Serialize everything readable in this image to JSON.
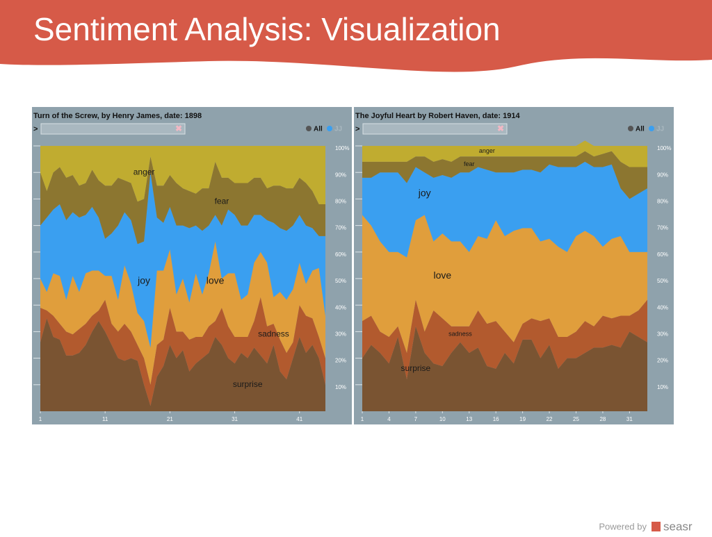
{
  "slide_title": "Sentiment Analysis: Visualization",
  "footer": {
    "text": "Powered by",
    "brand": "seasr"
  },
  "chart_data": [
    {
      "type": "area",
      "stacked": true,
      "title": "Turn of the Screw, by Henry James, date: 1898",
      "prompt": ">",
      "legend_items": [
        {
          "label": "All",
          "color": "#555555"
        },
        {
          "label": "JJ",
          "color": "#3a9ff0"
        }
      ],
      "x": [
        1,
        2,
        3,
        4,
        5,
        6,
        7,
        8,
        9,
        10,
        11,
        12,
        13,
        14,
        15,
        16,
        17,
        18,
        19,
        20,
        21,
        22,
        23,
        24,
        25,
        26,
        27,
        28,
        29,
        30,
        31,
        32,
        33,
        34,
        35,
        36,
        37,
        38,
        39,
        40,
        41,
        42,
        43,
        44,
        45
      ],
      "xlim": [
        1,
        45
      ],
      "xticks": [
        1,
        11,
        21,
        31,
        41
      ],
      "ylim": [
        0,
        100
      ],
      "yticks": [
        {
          "value": 10,
          "label": "10%"
        },
        {
          "value": 20,
          "label": "20%"
        },
        {
          "value": 30,
          "label": "30%"
        },
        {
          "value": 40,
          "label": "40%"
        },
        {
          "value": 50,
          "label": "50%"
        },
        {
          "value": 60,
          "label": "60%"
        },
        {
          "value": 70,
          "label": "70%"
        },
        {
          "value": 80,
          "label": "80%"
        },
        {
          "value": 90,
          "label": "90%"
        },
        {
          "value": 100,
          "label": "100%"
        }
      ],
      "series": [
        {
          "name": "surprise",
          "color": "#7a5432",
          "values": [
            26,
            35,
            28,
            27,
            21,
            21,
            22,
            25,
            30,
            34,
            30,
            25,
            20,
            19,
            20,
            19,
            10,
            2,
            13,
            17,
            25,
            20,
            23,
            15,
            18,
            20,
            22,
            28,
            25,
            20,
            18,
            22,
            20,
            24,
            21,
            18,
            25,
            15,
            12,
            20,
            28,
            22,
            25,
            20,
            10
          ]
        },
        {
          "name": "sadness",
          "color": "#b25a2e",
          "values": [
            13,
            3,
            8,
            6,
            9,
            8,
            9,
            8,
            6,
            4,
            12,
            8,
            10,
            14,
            10,
            6,
            10,
            8,
            12,
            10,
            14,
            10,
            7,
            12,
            10,
            8,
            10,
            6,
            14,
            12,
            10,
            6,
            8,
            10,
            22,
            14,
            8,
            12,
            10,
            6,
            12,
            14,
            10,
            8,
            10
          ]
        },
        {
          "name": "love",
          "color": "#e09e3c",
          "values": [
            11,
            7,
            16,
            18,
            12,
            22,
            14,
            19,
            17,
            15,
            9,
            18,
            12,
            22,
            18,
            12,
            14,
            14,
            28,
            26,
            22,
            14,
            20,
            14,
            24,
            16,
            20,
            30,
            11,
            20,
            24,
            14,
            16,
            22,
            17,
            24,
            10,
            18,
            20,
            20,
            16,
            12,
            18,
            26,
            16
          ]
        },
        {
          "name": "joy",
          "color": "#3a9ff0",
          "values": [
            20,
            28,
            24,
            27,
            30,
            24,
            28,
            22,
            24,
            20,
            14,
            16,
            28,
            20,
            24,
            26,
            30,
            66,
            20,
            18,
            16,
            26,
            20,
            28,
            18,
            24,
            18,
            10,
            20,
            24,
            22,
            28,
            26,
            18,
            14,
            16,
            28,
            24,
            26,
            24,
            18,
            22,
            16,
            12,
            30
          ]
        },
        {
          "name": "fear",
          "color": "#8c7630",
          "values": [
            20,
            10,
            14,
            14,
            16,
            14,
            12,
            12,
            14,
            14,
            20,
            18,
            18,
            12,
            14,
            16,
            16,
            6,
            12,
            14,
            12,
            16,
            14,
            14,
            12,
            16,
            14,
            20,
            18,
            12,
            12,
            16,
            16,
            14,
            14,
            12,
            14,
            16,
            16,
            14,
            14,
            16,
            14,
            12,
            12
          ]
        },
        {
          "name": "anger",
          "color": "#c0ac30",
          "values": [
            10,
            17,
            10,
            8,
            12,
            11,
            15,
            14,
            9,
            13,
            15,
            15,
            12,
            13,
            14,
            21,
            20,
            4,
            15,
            15,
            11,
            14,
            16,
            17,
            18,
            16,
            16,
            6,
            12,
            12,
            14,
            14,
            14,
            12,
            12,
            16,
            15,
            15,
            16,
            16,
            12,
            14,
            17,
            22,
            22
          ]
        }
      ]
    },
    {
      "type": "area",
      "stacked": true,
      "title": "The Joyful Heart by Robert Haven, date: 1914",
      "prompt": ">",
      "legend_items": [
        {
          "label": "All",
          "color": "#555555"
        },
        {
          "label": "JJ",
          "color": "#3a9ff0"
        }
      ],
      "x": [
        1,
        2,
        3,
        4,
        5,
        6,
        7,
        8,
        9,
        10,
        11,
        12,
        13,
        14,
        15,
        16,
        17,
        18,
        19,
        20,
        21,
        22,
        23,
        24,
        25,
        26,
        27,
        28,
        29,
        30,
        31,
        32,
        33
      ],
      "xlim": [
        1,
        33
      ],
      "xticks": [
        1,
        4,
        7,
        10,
        13,
        16,
        19,
        22,
        25,
        28,
        31
      ],
      "ylim": [
        0,
        100
      ],
      "yticks": [
        {
          "value": 10,
          "label": "10%"
        },
        {
          "value": 20,
          "label": "20%"
        },
        {
          "value": 30,
          "label": "30%"
        },
        {
          "value": 40,
          "label": "40%"
        },
        {
          "value": 50,
          "label": "50%"
        },
        {
          "value": 60,
          "label": "60%"
        },
        {
          "value": 70,
          "label": "70%"
        },
        {
          "value": 80,
          "label": "80%"
        },
        {
          "value": 90,
          "label": "90%"
        },
        {
          "value": 100,
          "label": "100%"
        }
      ],
      "series": [
        {
          "name": "surprise",
          "color": "#7a5432",
          "values": [
            20,
            25,
            22,
            18,
            28,
            12,
            32,
            22,
            18,
            17,
            22,
            26,
            22,
            24,
            17,
            16,
            22,
            18,
            27,
            27,
            20,
            25,
            16,
            20,
            20,
            22,
            24,
            24,
            25,
            24,
            30,
            28,
            26
          ]
        },
        {
          "name": "sadness",
          "color": "#b25a2e",
          "values": [
            14,
            11,
            8,
            10,
            4,
            10,
            10,
            8,
            20,
            18,
            10,
            6,
            10,
            14,
            16,
            18,
            8,
            8,
            6,
            8,
            14,
            10,
            12,
            8,
            10,
            12,
            8,
            12,
            10,
            12,
            6,
            10,
            16
          ]
        },
        {
          "name": "love",
          "color": "#e09e3c",
          "values": [
            40,
            34,
            34,
            32,
            28,
            36,
            30,
            44,
            26,
            32,
            32,
            32,
            28,
            28,
            32,
            38,
            36,
            42,
            36,
            34,
            30,
            30,
            34,
            32,
            36,
            34,
            34,
            26,
            30,
            30,
            24,
            22,
            18
          ]
        },
        {
          "name": "joy",
          "color": "#3a9ff0",
          "values": [
            14,
            18,
            26,
            30,
            30,
            28,
            20,
            16,
            24,
            22,
            24,
            26,
            30,
            26,
            26,
            18,
            24,
            22,
            22,
            22,
            26,
            28,
            30,
            32,
            26,
            26,
            26,
            30,
            28,
            18,
            20,
            22,
            24
          ]
        },
        {
          "name": "fear",
          "color": "#8c7630",
          "values": [
            6,
            6,
            4,
            4,
            4,
            8,
            4,
            6,
            6,
            6,
            6,
            6,
            6,
            4,
            5,
            6,
            6,
            6,
            5,
            5,
            6,
            3,
            4,
            4,
            4,
            4,
            4,
            5,
            5,
            10,
            12,
            10,
            8
          ]
        },
        {
          "name": "anger",
          "color": "#c0ac30",
          "values": [
            6,
            6,
            6,
            6,
            6,
            6,
            4,
            4,
            6,
            5,
            6,
            4,
            4,
            4,
            4,
            4,
            4,
            4,
            4,
            4,
            4,
            4,
            4,
            4,
            4,
            4,
            4,
            3,
            2,
            6,
            8,
            8,
            8
          ]
        }
      ]
    }
  ]
}
